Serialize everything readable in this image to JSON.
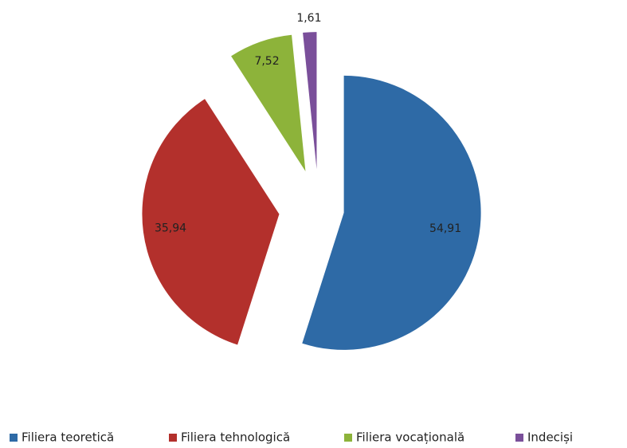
{
  "chart_data": {
    "type": "pie",
    "categories": [
      "Filiera teoretică",
      "Filiera tehnologică",
      "Filiera vocațională",
      "Indeciși"
    ],
    "values": [
      54.91,
      35.94,
      7.52,
      1.61
    ],
    "value_labels": [
      "54,91",
      "35,94",
      "7,52",
      "1,61"
    ],
    "colors": [
      "#2e6aa6",
      "#b3302c",
      "#8db33a",
      "#7a4f9a"
    ],
    "legend": "bottom"
  }
}
